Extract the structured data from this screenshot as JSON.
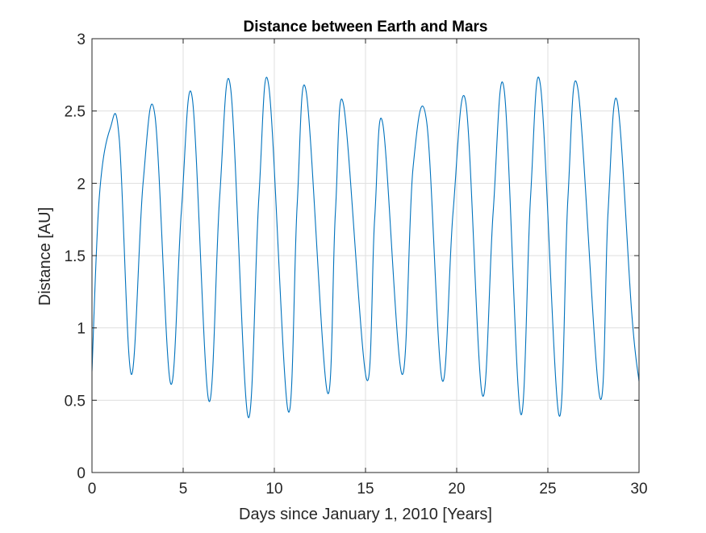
{
  "chart_data": {
    "type": "line",
    "title": "Distance between Earth and Mars",
    "xlabel": "Days since January 1, 2010 [Years]",
    "ylabel": "Distance [AU]",
    "xlim": [
      0,
      30
    ],
    "ylim": [
      0,
      3
    ],
    "grid": true,
    "x_ticks": [
      0,
      5,
      10,
      15,
      20,
      25,
      30
    ],
    "x_tick_labels": [
      "0",
      "5",
      "10",
      "15",
      "20",
      "25",
      "30"
    ],
    "y_ticks": [
      0,
      0.5,
      1,
      1.5,
      2,
      2.5,
      3
    ],
    "y_tick_labels": [
      "0",
      "0.5",
      "1",
      "1.5",
      "2",
      "2.5",
      "3"
    ],
    "series": [
      {
        "color": "#0072BD",
        "x": [
          0,
          0.4,
          1.0,
          1.5,
          2.15,
          2.8,
          3.45,
          4.3,
          4.9,
          5.5,
          6.4,
          7.0,
          7.6,
          8.55,
          9.15,
          9.7,
          10.75,
          11.25,
          11.75,
          12.9,
          13.35,
          13.8,
          15.05,
          15.5,
          15.95,
          17.0,
          17.6,
          18.35,
          19.2,
          19.8,
          20.5,
          21.4,
          22.0,
          22.6,
          23.5,
          24.05,
          24.6,
          25.6,
          26.1,
          26.65,
          27.85,
          28.3,
          28.8,
          29.6,
          30
        ]
      },
      {
        "y": [
          0.7,
          1.9,
          2.38,
          2.3,
          0.68,
          2.0,
          2.47,
          0.62,
          1.8,
          2.59,
          0.5,
          1.9,
          2.66,
          0.39,
          1.9,
          2.67,
          0.43,
          1.85,
          2.63,
          0.56,
          1.8,
          2.54,
          0.65,
          1.75,
          2.41,
          0.68,
          2.1,
          2.43,
          0.64,
          1.8,
          2.56,
          0.54,
          1.8,
          2.65,
          0.41,
          1.9,
          2.67,
          0.4,
          1.9,
          2.65,
          0.52,
          1.8,
          2.57,
          1.1,
          0.63
        ]
      }
    ]
  }
}
